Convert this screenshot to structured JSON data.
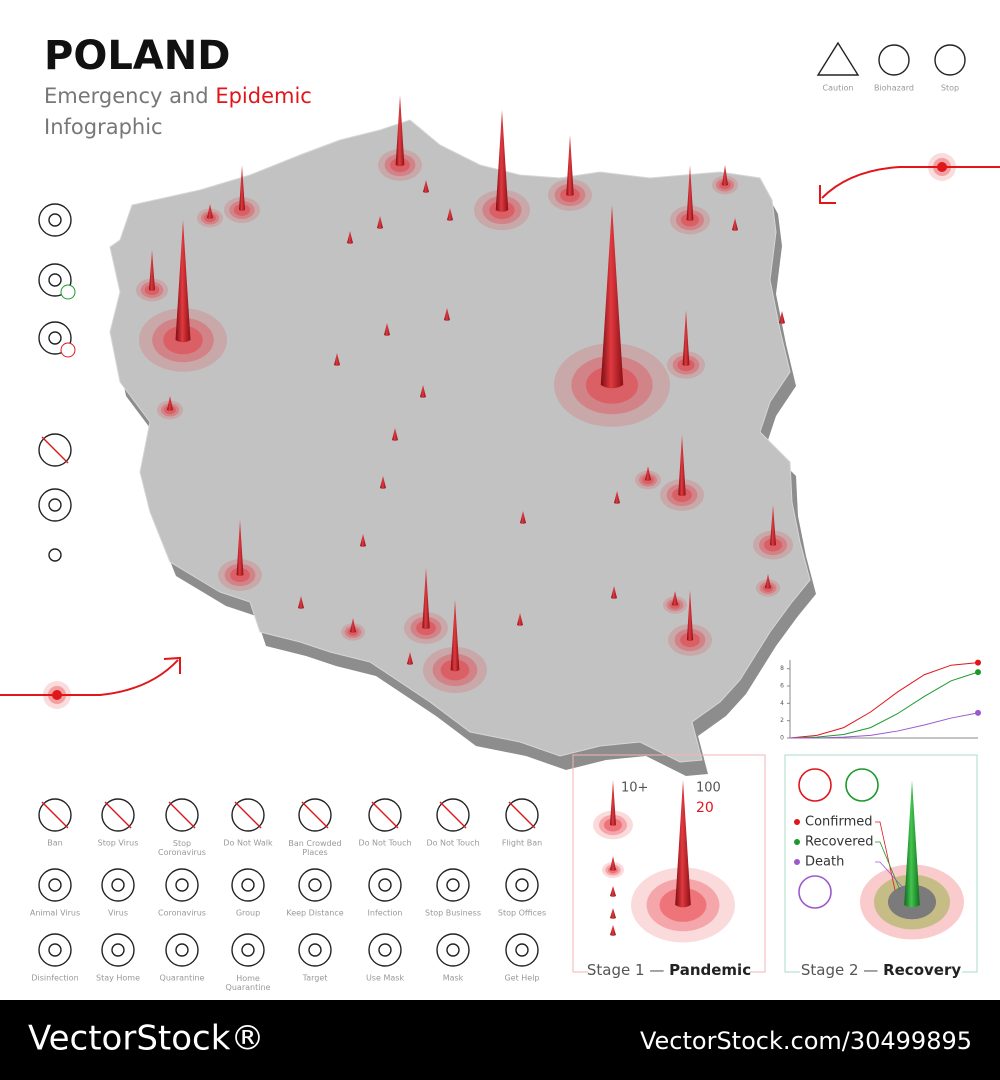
{
  "header": {
    "title": "POLAND",
    "subtitle_start": "Emergency and",
    "subtitle_highlight": "Epidemic",
    "subtitle_end": "Infographic"
  },
  "top_icons": [
    "Caution",
    "Biohazard",
    "Stop"
  ],
  "icon_grid": [
    [
      "Ban",
      "Stop Virus",
      "Stop Coronavirus",
      "Do Not Walk",
      "Ban Crowded Places",
      "Do Not Touch",
      "Do Not Touch",
      "Flight Ban"
    ],
    [
      "Animal Virus",
      "Virus",
      "Coronavirus",
      "Group",
      "Keep Distance",
      "Infection",
      "Stop Business",
      "Stop Offices"
    ],
    [
      "Disinfection",
      "Stay Home",
      "Quarantine",
      "Home Quarantine",
      "Target",
      "Use Mask",
      "Mask",
      "Get Help"
    ]
  ],
  "stage1": {
    "prefix": "Stage 1 —",
    "name": "Pandemic",
    "scale_small": "10+",
    "scale_large": "100",
    "scale_note": "20"
  },
  "stage2": {
    "prefix": "Stage 2 —",
    "name": "Recovery"
  },
  "mini_chart": {
    "type": "line",
    "ylim": [
      0,
      9
    ],
    "yticks": [
      0,
      2,
      4,
      6,
      8
    ],
    "series": [
      {
        "name": "Confirmed",
        "color": "#e0161b",
        "values": [
          0,
          0.3,
          1.2,
          3,
          5.3,
          7.3,
          8.4,
          8.7
        ]
      },
      {
        "name": "Recovered",
        "color": "#1a9a2a",
        "values": [
          0,
          0.1,
          0.4,
          1.2,
          2.8,
          4.8,
          6.6,
          7.6
        ]
      },
      {
        "name": "Death",
        "color": "#9b59d0",
        "values": [
          0,
          0,
          0.1,
          0.3,
          0.8,
          1.5,
          2.3,
          2.9
        ]
      }
    ]
  },
  "watermark": {
    "brand": "VectorStock®",
    "url": "VectorStock.com/30499895"
  }
}
